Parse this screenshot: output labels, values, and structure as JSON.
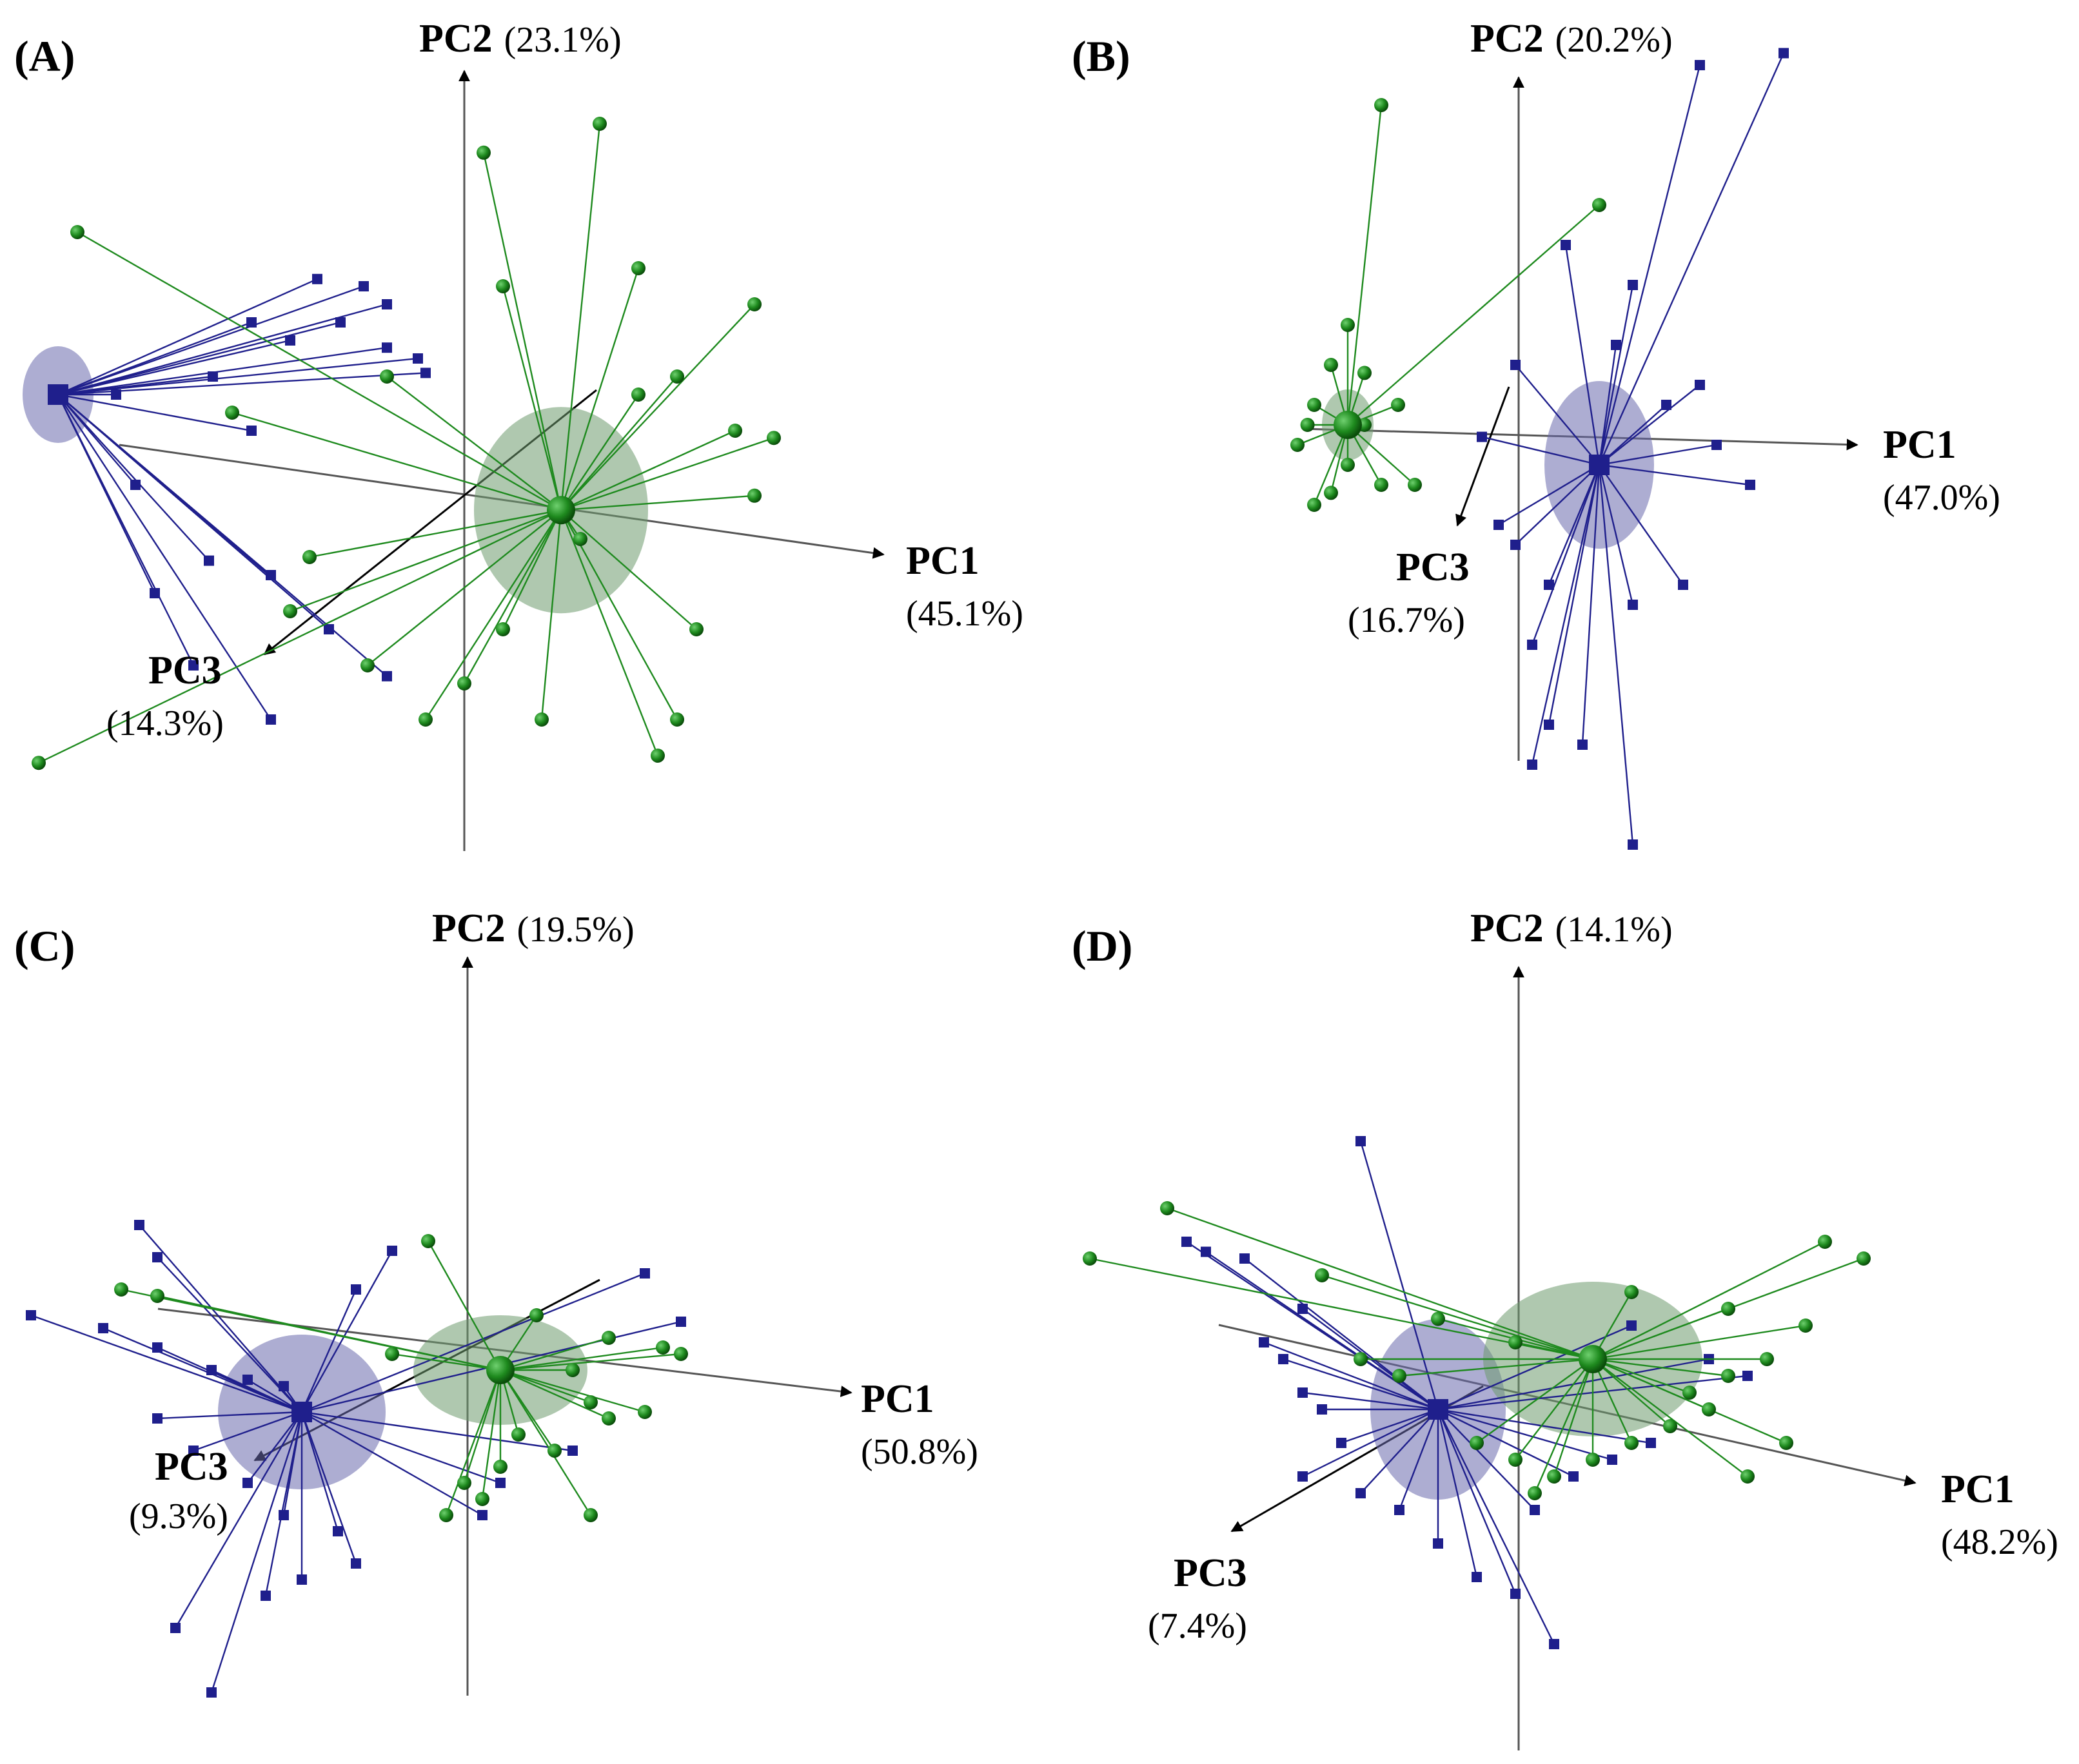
{
  "colors": {
    "blue_group": "#1f1f8c",
    "green_group": "#1e8a1e",
    "blue_ellipse": "#6a6aad",
    "green_ellipse": "#6d9a6d",
    "axis": "#555555",
    "arrow": "#000000"
  },
  "chart_data": [
    {
      "type": "scatter",
      "subtype": "3d-pca-star-plot",
      "panel_label": "(A)",
      "axes": {
        "pc1": {
          "name": "PC1",
          "variance": "(45.1%)"
        },
        "pc2": {
          "name": "PC2",
          "variance": "(23.1%)"
        },
        "pc3": {
          "name": "PC3",
          "variance": "(14.3%)"
        }
      },
      "series": [
        {
          "marker": "square",
          "color": "blue",
          "centroid": [
            -1.05,
            0.3
          ],
          "points": [
            [
              -0.38,
              0.62
            ],
            [
              -0.26,
              0.6
            ],
            [
              -0.2,
              0.55
            ],
            [
              -0.45,
              0.45
            ],
            [
              -0.55,
              0.5
            ],
            [
              -0.32,
              0.5
            ],
            [
              -0.12,
              0.4
            ],
            [
              -0.1,
              0.36
            ],
            [
              -0.2,
              0.43
            ],
            [
              -0.9,
              0.3
            ],
            [
              -0.85,
              0.05
            ],
            [
              -0.66,
              -0.16
            ],
            [
              -0.5,
              -0.2
            ],
            [
              -0.35,
              -0.35
            ],
            [
              -0.2,
              -0.48
            ],
            [
              -0.5,
              -0.6
            ],
            [
              -0.7,
              -0.45
            ],
            [
              -0.8,
              -0.25
            ],
            [
              -0.55,
              0.2
            ],
            [
              -0.65,
              0.35
            ]
          ]
        },
        {
          "marker": "circle",
          "color": "green",
          "centroid": [
            0.25,
            -0.02
          ],
          "points": [
            [
              -1.0,
              0.75
            ],
            [
              0.05,
              0.97
            ],
            [
              0.35,
              1.05
            ],
            [
              0.1,
              0.6
            ],
            [
              0.45,
              0.65
            ],
            [
              0.75,
              0.55
            ],
            [
              0.55,
              0.35
            ],
            [
              0.45,
              0.3
            ],
            [
              0.7,
              0.2
            ],
            [
              0.8,
              0.18
            ],
            [
              0.75,
              0.02
            ],
            [
              0.3,
              -0.1
            ],
            [
              0.6,
              -0.35
            ],
            [
              0.55,
              -0.6
            ],
            [
              0.5,
              -0.7
            ],
            [
              0.2,
              -0.6
            ],
            [
              0.0,
              -0.5
            ],
            [
              -0.1,
              -0.6
            ],
            [
              -0.25,
              -0.45
            ],
            [
              -0.45,
              -0.3
            ],
            [
              -0.4,
              -0.15
            ],
            [
              -0.6,
              0.25
            ],
            [
              -1.1,
              -0.72
            ],
            [
              -0.2,
              0.35
            ],
            [
              0.1,
              -0.35
            ]
          ]
        }
      ]
    },
    {
      "type": "scatter",
      "subtype": "3d-pca-star-plot",
      "panel_label": "(B)",
      "axes": {
        "pc1": {
          "name": "PC1",
          "variance": "(47.0%)"
        },
        "pc2": {
          "name": "PC2",
          "variance": "(20.2%)"
        },
        "pc3": {
          "name": "PC3",
          "variance": "(16.7%)"
        }
      },
      "series": [
        {
          "marker": "square",
          "color": "blue",
          "centroid": [
            0.25,
            -0.05
          ],
          "points": [
            [
              0.55,
              0.95
            ],
            [
              0.8,
              0.98
            ],
            [
              0.15,
              0.5
            ],
            [
              0.35,
              0.4
            ],
            [
              0.3,
              0.25
            ],
            [
              0.55,
              0.15
            ],
            [
              0.45,
              0.1
            ],
            [
              0.6,
              0.0
            ],
            [
              0.7,
              -0.1
            ],
            [
              0.5,
              -0.35
            ],
            [
              0.35,
              -0.4
            ],
            [
              0.1,
              -0.35
            ],
            [
              0.05,
              -0.5
            ],
            [
              0.1,
              -0.7
            ],
            [
              0.2,
              -0.75
            ],
            [
              0.05,
              -0.8
            ],
            [
              0.0,
              -0.25
            ],
            [
              -0.05,
              -0.2
            ],
            [
              -0.1,
              0.02
            ],
            [
              0.35,
              -1.0
            ],
            [
              0.0,
              0.2
            ]
          ]
        },
        {
          "marker": "circle",
          "color": "green",
          "centroid": [
            -0.5,
            0.05
          ],
          "points": [
            [
              -0.4,
              0.85
            ],
            [
              0.25,
              0.6
            ],
            [
              -0.5,
              0.3
            ],
            [
              -0.55,
              0.2
            ],
            [
              -0.6,
              0.1
            ],
            [
              -0.65,
              0.0
            ],
            [
              -0.45,
              0.05
            ],
            [
              -0.5,
              -0.05
            ],
            [
              -0.4,
              -0.1
            ],
            [
              -0.3,
              -0.1
            ],
            [
              -0.55,
              -0.12
            ],
            [
              -0.6,
              -0.15
            ],
            [
              -0.35,
              0.1
            ],
            [
              -0.45,
              0.18
            ],
            [
              -0.62,
              0.05
            ]
          ]
        }
      ]
    },
    {
      "type": "scatter",
      "subtype": "3d-pca-star-plot",
      "panel_label": "(C)",
      "axes": {
        "pc1": {
          "name": "PC1",
          "variance": "(50.8%)"
        },
        "pc2": {
          "name": "PC2",
          "variance": "(19.5%)"
        },
        "pc3": {
          "name": "PC3",
          "variance": "(9.3%)"
        }
      },
      "series": [
        {
          "marker": "square",
          "color": "blue",
          "centroid": [
            -0.45,
            -0.08
          ],
          "points": [
            [
              -0.9,
              0.5
            ],
            [
              -0.85,
              0.4
            ],
            [
              -1.2,
              0.22
            ],
            [
              -1.0,
              0.18
            ],
            [
              -0.85,
              0.12
            ],
            [
              -0.7,
              0.05
            ],
            [
              -0.6,
              0.02
            ],
            [
              -0.5,
              0.0
            ],
            [
              -0.85,
              -0.1
            ],
            [
              -0.75,
              -0.2
            ],
            [
              -0.6,
              -0.3
            ],
            [
              -0.5,
              -0.4
            ],
            [
              -0.35,
              -0.45
            ],
            [
              -0.3,
              -0.55
            ],
            [
              -0.45,
              -0.6
            ],
            [
              -0.55,
              -0.65
            ],
            [
              -0.8,
              -0.75
            ],
            [
              -0.7,
              -0.95
            ],
            [
              -0.2,
              0.42
            ],
            [
              -0.3,
              0.3
            ],
            [
              0.5,
              0.35
            ],
            [
              0.6,
              0.2
            ],
            [
              0.3,
              -0.2
            ],
            [
              0.1,
              -0.3
            ],
            [
              0.05,
              -0.4
            ]
          ]
        },
        {
          "marker": "circle",
          "color": "green",
          "centroid": [
            0.1,
            0.05
          ],
          "points": [
            [
              -0.1,
              0.45
            ],
            [
              -0.95,
              0.3
            ],
            [
              -0.85,
              0.28
            ],
            [
              -0.2,
              0.1
            ],
            [
              0.2,
              0.22
            ],
            [
              0.4,
              0.15
            ],
            [
              0.55,
              0.12
            ],
            [
              0.6,
              0.1
            ],
            [
              0.3,
              0.05
            ],
            [
              0.35,
              -0.05
            ],
            [
              0.4,
              -0.1
            ],
            [
              0.5,
              -0.08
            ],
            [
              0.15,
              -0.15
            ],
            [
              0.25,
              -0.2
            ],
            [
              0.1,
              -0.25
            ],
            [
              0.0,
              -0.3
            ],
            [
              0.05,
              -0.35
            ],
            [
              0.35,
              -0.4
            ],
            [
              -0.05,
              -0.4
            ]
          ]
        }
      ]
    },
    {
      "type": "scatter",
      "subtype": "3d-pca-star-plot",
      "panel_label": "(D)",
      "axes": {
        "pc1": {
          "name": "PC1",
          "variance": "(48.2%)"
        },
        "pc2": {
          "name": "PC2",
          "variance": "(14.1%)"
        },
        "pc3": {
          "name": "PC3",
          "variance": "(7.4%)"
        }
      },
      "series": [
        {
          "marker": "square",
          "color": "blue",
          "centroid": [
            -0.2,
            -0.05
          ],
          "points": [
            [
              -0.4,
              0.75
            ],
            [
              -0.85,
              0.45
            ],
            [
              -0.8,
              0.42
            ],
            [
              -0.7,
              0.4
            ],
            [
              -0.55,
              0.25
            ],
            [
              -0.65,
              0.15
            ],
            [
              -0.6,
              0.1
            ],
            [
              -0.55,
              0.0
            ],
            [
              -0.5,
              -0.05
            ],
            [
              -0.45,
              -0.15
            ],
            [
              -0.55,
              -0.25
            ],
            [
              -0.4,
              -0.3
            ],
            [
              -0.3,
              -0.35
            ],
            [
              -0.2,
              -0.45
            ],
            [
              -0.1,
              -0.55
            ],
            [
              0.0,
              -0.6
            ],
            [
              0.05,
              -0.35
            ],
            [
              0.15,
              -0.25
            ],
            [
              0.25,
              -0.2
            ],
            [
              0.3,
              0.2
            ],
            [
              0.5,
              0.1
            ],
            [
              0.6,
              0.05
            ],
            [
              0.35,
              -0.15
            ],
            [
              0.1,
              -0.75
            ]
          ]
        },
        {
          "marker": "circle",
          "color": "green",
          "centroid": [
            0.2,
            0.1
          ],
          "points": [
            [
              -0.9,
              0.55
            ],
            [
              -1.1,
              0.4
            ],
            [
              -0.5,
              0.35
            ],
            [
              -0.2,
              0.22
            ],
            [
              0.0,
              0.15
            ],
            [
              0.3,
              0.3
            ],
            [
              0.55,
              0.25
            ],
            [
              0.8,
              0.45
            ],
            [
              0.9,
              0.4
            ],
            [
              0.75,
              0.2
            ],
            [
              0.65,
              0.1
            ],
            [
              0.55,
              0.05
            ],
            [
              0.45,
              0.0
            ],
            [
              0.5,
              -0.05
            ],
            [
              0.4,
              -0.1
            ],
            [
              0.3,
              -0.15
            ],
            [
              0.2,
              -0.2
            ],
            [
              0.1,
              -0.25
            ],
            [
              0.05,
              -0.3
            ],
            [
              0.0,
              -0.2
            ],
            [
              -0.1,
              -0.15
            ],
            [
              -0.3,
              0.05
            ],
            [
              -0.4,
              0.1
            ],
            [
              0.6,
              -0.25
            ],
            [
              0.7,
              -0.15
            ]
          ]
        }
      ]
    }
  ]
}
